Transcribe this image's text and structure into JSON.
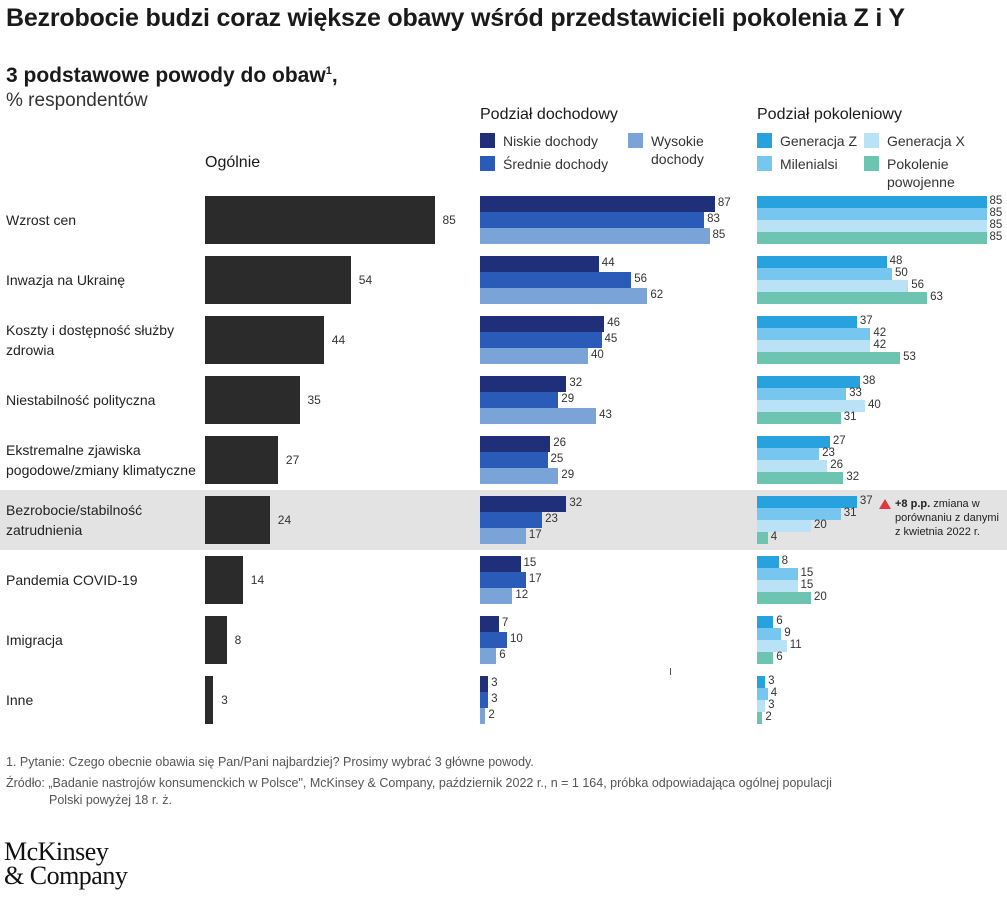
{
  "title": "Bezrobocie budzi coraz większe obawy wśród przedstawicieli pokolenia Z i Y",
  "subtitle": "3 podstawowe powody do obaw",
  "subtitle_sup": "1",
  "subtitle_comma": ",",
  "unit_label": "% respondentów",
  "colors": {
    "overall": "#2b2b2b",
    "low_income": "#1f2f7a",
    "mid_income": "#2a5bb8",
    "high_income": "#7aa3d8",
    "gen_z": "#27a2df",
    "millennials": "#76c6ef",
    "gen_x": "#b9e2f6",
    "postwar": "#6cc4b1",
    "highlight_row": "#e3e3e3",
    "note_triangle": "#e03a3e"
  },
  "panels": {
    "overall": {
      "heading": "Ogólnie"
    },
    "income": {
      "heading": "Podział dochodowy",
      "legend": [
        "Niskie dochody",
        "Średnie dochody",
        "Wysokie\ndochody"
      ]
    },
    "generation": {
      "heading": "Podział pokoleniowy",
      "legend": [
        "Generacja Z",
        "Milenialsi",
        "Generacja X",
        "Pokolenie\npowojenne"
      ]
    }
  },
  "chart_data": {
    "type": "bar",
    "orientation": "horizontal",
    "categories": [
      "Wzrost cen",
      "Inwazja na Ukrainę",
      "Koszty i dostępność służby\nzdrowia",
      "Niestabilność polityczna",
      "Ekstremalne zjawiska\npogodowe/zmiany klimatyczne",
      "Bezrobocie/stabilność\nzatrudnienia",
      "Pandemia COVID-19",
      "Imigracja",
      "Inne"
    ],
    "highlighted_category": "Bezrobocie/stabilność\nzatrudnienia",
    "panels": [
      {
        "name": "Ogólnie",
        "series": [
          {
            "name": "Ogólnie",
            "values": [
              85,
              54,
              44,
              35,
              27,
              24,
              14,
              8,
              3
            ]
          }
        ]
      },
      {
        "name": "Podział dochodowy",
        "series": [
          {
            "name": "Niskie dochody",
            "values": [
              87,
              44,
              46,
              32,
              26,
              32,
              15,
              7,
              3
            ]
          },
          {
            "name": "Średnie dochody",
            "values": [
              83,
              56,
              45,
              29,
              25,
              23,
              17,
              10,
              3
            ]
          },
          {
            "name": "Wysokie dochody",
            "values": [
              85,
              62,
              40,
              43,
              29,
              17,
              12,
              6,
              2
            ]
          }
        ]
      },
      {
        "name": "Podział pokoleniowy",
        "series": [
          {
            "name": "Generacja Z",
            "values": [
              85,
              48,
              37,
              38,
              27,
              37,
              8,
              6,
              3
            ]
          },
          {
            "name": "Milenialsi",
            "values": [
              85,
              50,
              42,
              33,
              23,
              31,
              15,
              9,
              4
            ]
          },
          {
            "name": "Generacja X",
            "values": [
              85,
              56,
              42,
              40,
              26,
              20,
              15,
              11,
              3
            ]
          },
          {
            "name": "Pokolenie powojenne",
            "values": [
              85,
              63,
              53,
              31,
              32,
              4,
              20,
              6,
              2
            ]
          }
        ]
      }
    ],
    "xlim": [
      0,
      100
    ],
    "annotation": {
      "category": "Bezrobocie/stabilność\nzatrudnienia",
      "series": "Generacja Z",
      "value_text": "+8 p.p.",
      "text": "zmiana w\nporównaniu z danymi\nz kwietnia 2022 r."
    }
  },
  "footnotes": [
    "1. Pytanie: Czego obecnie obawia się Pan/Pani najbardziej? Prosimy wybrać 3 główne powody.",
    "Źródło: „Badanie nastrojów konsumenckich w Polsce\", McKinsey & Company, październik 2022 r., n = 1 164, próbka odpowiadająca ogólnej populacji",
    "Polski powyżej 18 r. ż."
  ],
  "logo": "McKinsey\n& Company"
}
